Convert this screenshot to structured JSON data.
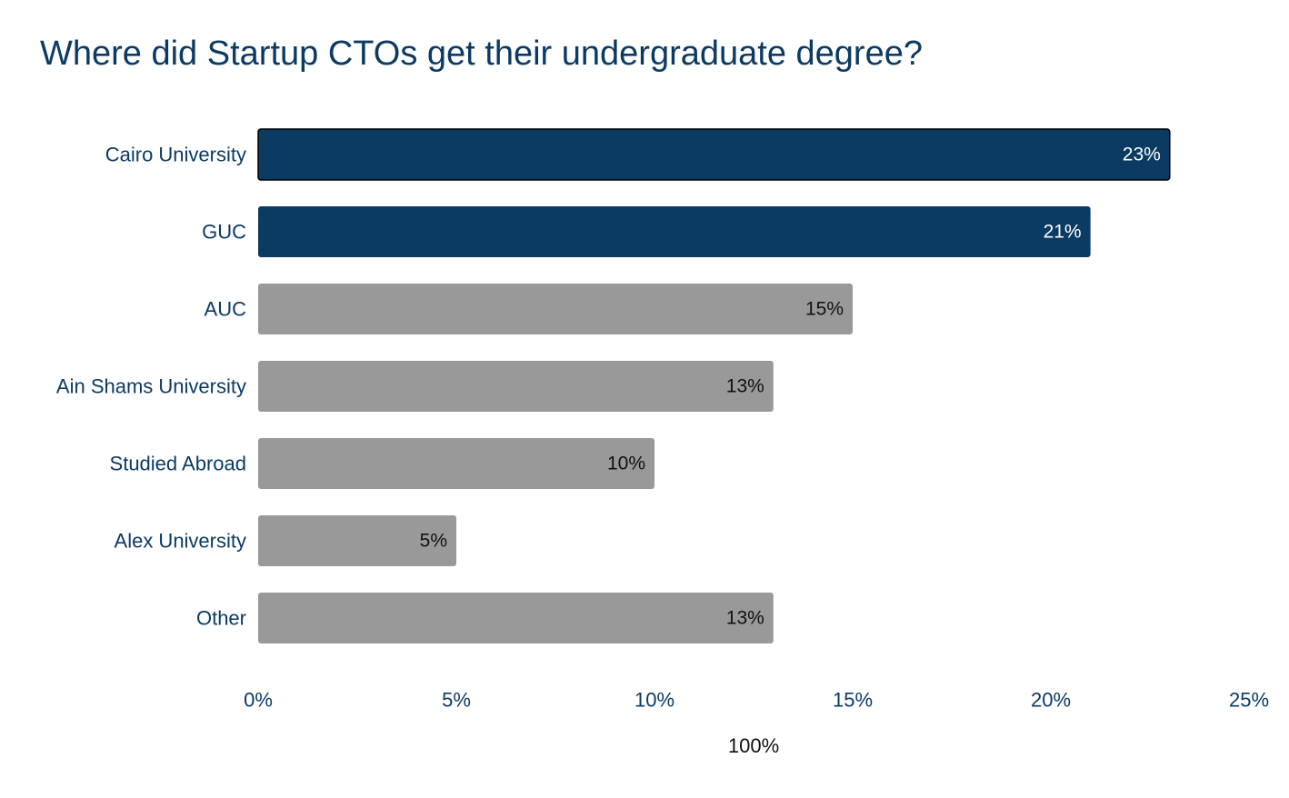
{
  "chart_data": {
    "type": "bar",
    "orientation": "horizontal",
    "title": "Where did Startup CTOs get their undergraduate degree?",
    "categories": [
      "Cairo University",
      "GUC",
      "AUC",
      "Ain Shams University",
      "Studied Abroad",
      "Alex University",
      "Other"
    ],
    "values": [
      23,
      21,
      15,
      13,
      10,
      5,
      13
    ],
    "value_labels": [
      "23%",
      "21%",
      "15%",
      "13%",
      "10%",
      "5%",
      "13%"
    ],
    "highlighted": [
      true,
      true,
      false,
      false,
      false,
      false,
      false
    ],
    "xlim": [
      0,
      25
    ],
    "x_ticks": [
      0,
      5,
      10,
      15,
      20,
      25
    ],
    "x_tick_labels": [
      "0%",
      "5%",
      "10%",
      "15%",
      "20%",
      "25%"
    ],
    "xlabel": "100%",
    "ylabel": "",
    "grid": false,
    "legend": "none"
  },
  "colors": {
    "highlight": "#0b3a63",
    "base": "#999999",
    "label_on_highlight": "#ffffff",
    "label_on_base": "#111111",
    "axis_text": "#0b3a63",
    "highlight_outline": "#000000"
  }
}
